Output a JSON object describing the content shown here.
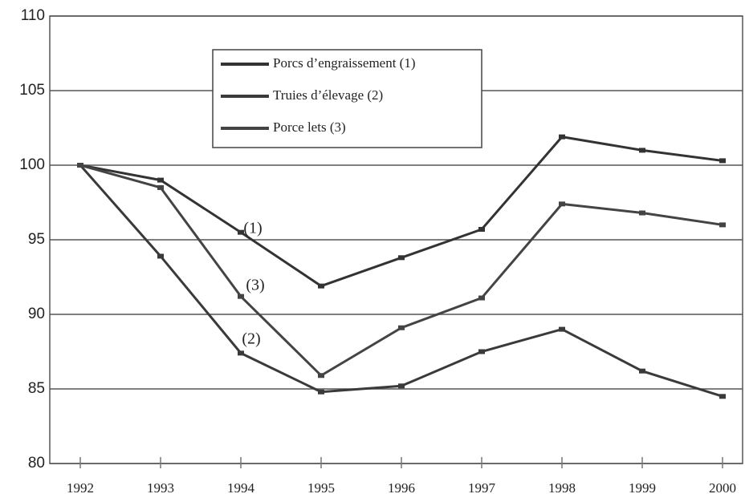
{
  "chart_data": {
    "type": "line",
    "categories": [
      "1992",
      "1993",
      "1994",
      "1995",
      "1996",
      "1997",
      "1998",
      "1999",
      "2000"
    ],
    "series": [
      {
        "name": "Porcs d’engraissement (1)",
        "color": "#333333",
        "values": [
          100,
          99.0,
          95.5,
          91.9,
          93.8,
          95.7,
          101.9,
          101.0,
          100.3
        ]
      },
      {
        "name": "Truies d’élevage (2)",
        "color": "#3a3a3a",
        "values": [
          100,
          93.9,
          87.4,
          84.8,
          85.2,
          87.5,
          89.0,
          86.2,
          84.5
        ]
      },
      {
        "name": "Porce lets (3)",
        "color": "#444444",
        "values": [
          100,
          98.5,
          91.2,
          85.9,
          89.1,
          91.1,
          97.4,
          96.8,
          96.0
        ]
      }
    ],
    "annotations": [
      "(1)",
      "(3)",
      "(2)"
    ],
    "ylim": [
      80,
      110
    ],
    "yticks": [
      80,
      85,
      90,
      95,
      100,
      105,
      110
    ],
    "grid": true
  }
}
